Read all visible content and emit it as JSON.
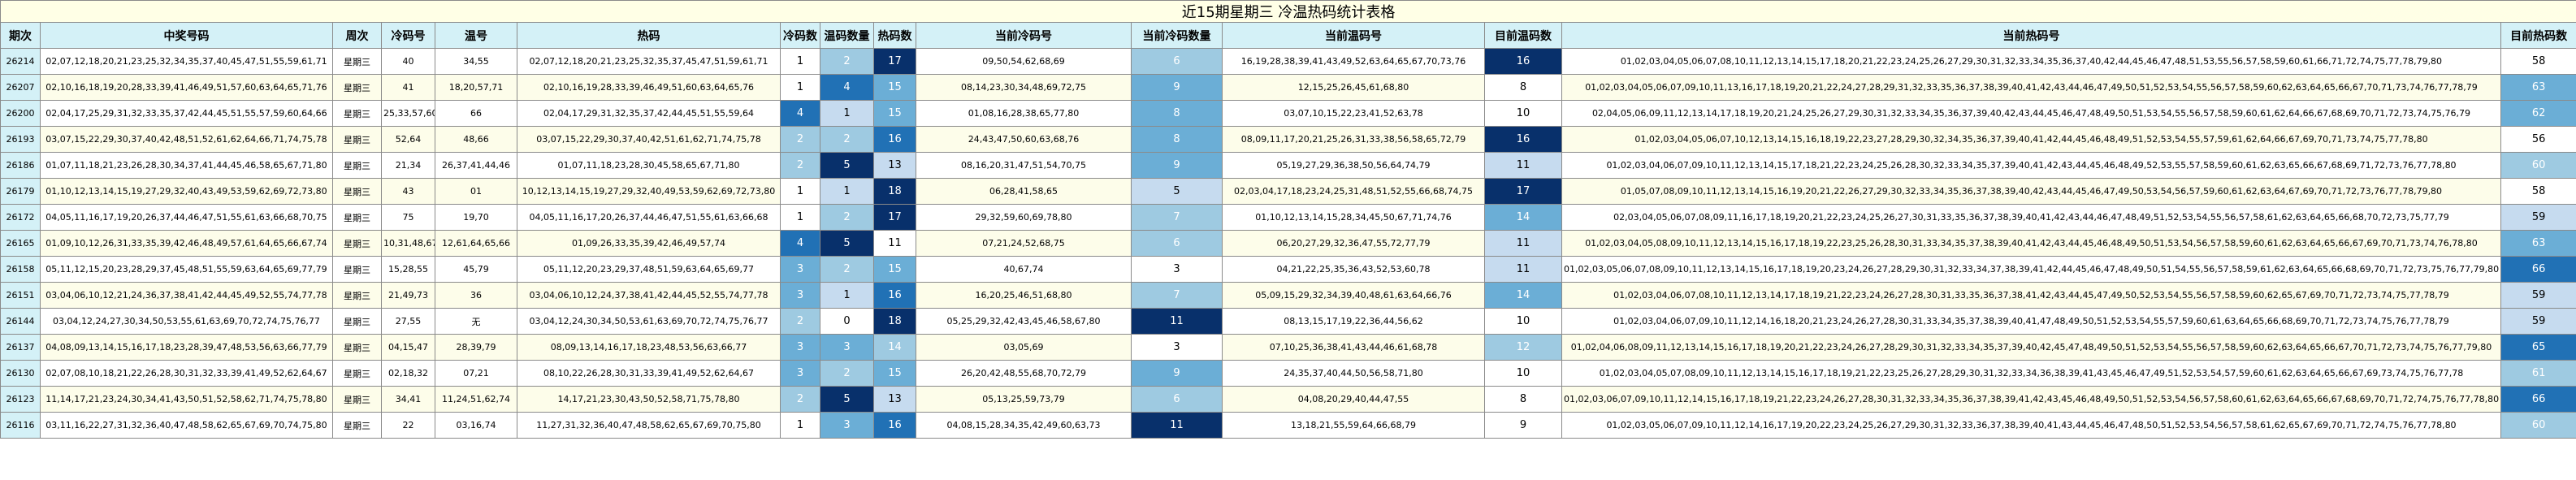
{
  "title": "近15期星期三 冷温热码统计表格",
  "headers": [
    "期次",
    "中奖号码",
    "周次",
    "冷码号",
    "温号",
    "热码",
    "冷码数",
    "温码数量",
    "热码数",
    "当前冷码号",
    "当前冷码数量",
    "当前温码号",
    "目前温码数",
    "当前热码号",
    "目前热码数"
  ],
  "rows": [
    {
      "period": "26214",
      "winning": "02,07,12,18,20,21,23,25,32,34,35,37,40,45,47,51,55,59,61,71",
      "weekday": "星期三",
      "cold": "40",
      "warm": "34,55",
      "hot": "02,07,12,18,20,21,23,25,32,35,37,45,47,51,59,61,71",
      "cold_n": "1",
      "warm_n": "2",
      "hot_n": "17",
      "cur_cold": "09,50,54,62,68,69",
      "cur_cold_n": "6",
      "cur_warm": "16,19,28,38,39,41,43,49,52,63,64,65,67,70,73,76",
      "cur_warm_n": "16",
      "cur_hot": "01,02,03,04,05,06,07,08,10,11,12,13,14,15,17,18,20,21,22,23,24,25,26,27,29,30,31,32,33,34,35,36,37,40,42,44,45,46,47,48,51,53,55,56,57,58,59,60,61,66,71,72,74,75,77,78,79,80",
      "cur_hot_n": "58"
    },
    {
      "period": "26207",
      "winning": "02,10,16,18,19,20,28,33,39,41,46,49,51,57,60,63,64,65,71,76",
      "weekday": "星期三",
      "cold": "41",
      "warm": "18,20,57,71",
      "hot": "02,10,16,19,28,33,39,46,49,51,60,63,64,65,76",
      "cold_n": "1",
      "warm_n": "4",
      "hot_n": "15",
      "cur_cold": "08,14,23,30,34,48,69,72,75",
      "cur_cold_n": "9",
      "cur_warm": "12,15,25,26,45,61,68,80",
      "cur_warm_n": "8",
      "cur_hot": "01,02,03,04,05,06,07,09,10,11,13,16,17,18,19,20,21,22,24,27,28,29,31,32,33,35,36,37,38,39,40,41,42,43,44,46,47,49,50,51,52,53,54,55,56,57,58,59,60,62,63,64,65,66,67,70,71,73,74,76,77,78,79",
      "cur_hot_n": "63"
    },
    {
      "period": "26200",
      "winning": "02,04,17,25,29,31,32,33,35,37,42,44,45,51,55,57,59,60,64,66",
      "weekday": "星期三",
      "cold": "25,33,57,60",
      "warm": "66",
      "hot": "02,04,17,29,31,32,35,37,42,44,45,51,55,59,64",
      "cold_n": "4",
      "warm_n": "1",
      "hot_n": "15",
      "cur_cold": "01,08,16,28,38,65,77,80",
      "cur_cold_n": "8",
      "cur_warm": "03,07,10,15,22,23,41,52,63,78",
      "cur_warm_n": "10",
      "cur_hot": "02,04,05,06,09,11,12,13,14,17,18,19,20,21,24,25,26,27,29,30,31,32,33,34,35,36,37,39,40,42,43,44,45,46,47,48,49,50,51,53,54,55,56,57,58,59,60,61,62,64,66,67,68,69,70,71,72,73,74,75,76,79",
      "cur_hot_n": "62"
    },
    {
      "period": "26193",
      "winning": "03,07,15,22,29,30,37,40,42,48,51,52,61,62,64,66,71,74,75,78",
      "weekday": "星期三",
      "cold": "52,64",
      "warm": "48,66",
      "hot": "03,07,15,22,29,30,37,40,42,51,61,62,71,74,75,78",
      "cold_n": "2",
      "warm_n": "2",
      "hot_n": "16",
      "cur_cold": "24,43,47,50,60,63,68,76",
      "cur_cold_n": "8",
      "cur_warm": "08,09,11,17,20,21,25,26,31,33,38,56,58,65,72,79",
      "cur_warm_n": "16",
      "cur_hot": "01,02,03,04,05,06,07,10,12,13,14,15,16,18,19,22,23,27,28,29,30,32,34,35,36,37,39,40,41,42,44,45,46,48,49,51,52,53,54,55,57,59,61,62,64,66,67,69,70,71,73,74,75,77,78,80",
      "cur_hot_n": "56"
    },
    {
      "period": "26186",
      "winning": "01,07,11,18,21,23,26,28,30,34,37,41,44,45,46,58,65,67,71,80",
      "weekday": "星期三",
      "cold": "21,34",
      "warm": "26,37,41,44,46",
      "hot": "01,07,11,18,23,28,30,45,58,65,67,71,80",
      "cold_n": "2",
      "warm_n": "5",
      "hot_n": "13",
      "cur_cold": "08,16,20,31,47,51,54,70,75",
      "cur_cold_n": "9",
      "cur_warm": "05,19,27,29,36,38,50,56,64,74,79",
      "cur_warm_n": "11",
      "cur_hot": "01,02,03,04,06,07,09,10,11,12,13,14,15,17,18,21,22,23,24,25,26,28,30,32,33,34,35,37,39,40,41,42,43,44,45,46,48,49,52,53,55,57,58,59,60,61,62,63,65,66,67,68,69,71,72,73,76,77,78,80",
      "cur_hot_n": "60"
    },
    {
      "period": "26179",
      "winning": "01,10,12,13,14,15,19,27,29,32,40,43,49,53,59,62,69,72,73,80",
      "weekday": "星期三",
      "cold": "43",
      "warm": "01",
      "hot": "10,12,13,14,15,19,27,29,32,40,49,53,59,62,69,72,73,80",
      "cold_n": "1",
      "warm_n": "1",
      "hot_n": "18",
      "cur_cold": "06,28,41,58,65",
      "cur_cold_n": "5",
      "cur_warm": "02,03,04,17,18,23,24,25,31,48,51,52,55,66,68,74,75",
      "cur_warm_n": "17",
      "cur_hot": "01,05,07,08,09,10,11,12,13,14,15,16,19,20,21,22,26,27,29,30,32,33,34,35,36,37,38,39,40,42,43,44,45,46,47,49,50,53,54,56,57,59,60,61,62,63,64,67,69,70,71,72,73,76,77,78,79,80",
      "cur_hot_n": "58"
    },
    {
      "period": "26172",
      "winning": "04,05,11,16,17,19,20,26,37,44,46,47,51,55,61,63,66,68,70,75",
      "weekday": "星期三",
      "cold": "75",
      "warm": "19,70",
      "hot": "04,05,11,16,17,20,26,37,44,46,47,51,55,61,63,66,68",
      "cold_n": "1",
      "warm_n": "2",
      "hot_n": "17",
      "cur_cold": "29,32,59,60,69,78,80",
      "cur_cold_n": "7",
      "cur_warm": "01,10,12,13,14,15,28,34,45,50,67,71,74,76",
      "cur_warm_n": "14",
      "cur_hot": "02,03,04,05,06,07,08,09,11,16,17,18,19,20,21,22,23,24,25,26,27,30,31,33,35,36,37,38,39,40,41,42,43,44,46,47,48,49,51,52,53,54,55,56,57,58,61,62,63,64,65,66,68,70,72,73,75,77,79",
      "cur_hot_n": "59"
    },
    {
      "period": "26165",
      "winning": "01,09,10,12,26,31,33,35,39,42,46,48,49,57,61,64,65,66,67,74",
      "weekday": "星期三",
      "cold": "10,31,48,67",
      "warm": "12,61,64,65,66",
      "hot": "01,09,26,33,35,39,42,46,49,57,74",
      "cold_n": "4",
      "warm_n": "5",
      "hot_n": "11",
      "cur_cold": "07,21,24,52,68,75",
      "cur_cold_n": "6",
      "cur_warm": "06,20,27,29,32,36,47,55,72,77,79",
      "cur_warm_n": "11",
      "cur_hot": "01,02,03,04,05,08,09,10,11,12,13,14,15,16,17,18,19,22,23,25,26,28,30,31,33,34,35,37,38,39,40,41,42,43,44,45,46,48,49,50,51,53,54,56,57,58,59,60,61,62,63,64,65,66,67,69,70,71,73,74,76,78,80",
      "cur_hot_n": "63"
    },
    {
      "period": "26158",
      "winning": "05,11,12,15,20,23,28,29,37,45,48,51,55,59,63,64,65,69,77,79",
      "weekday": "星期三",
      "cold": "15,28,55",
      "warm": "45,79",
      "hot": "05,11,12,20,23,29,37,48,51,59,63,64,65,69,77",
      "cold_n": "3",
      "warm_n": "2",
      "hot_n": "15",
      "cur_cold": "40,67,74",
      "cur_cold_n": "3",
      "cur_warm": "04,21,22,25,35,36,43,52,53,60,78",
      "cur_warm_n": "11",
      "cur_hot": "01,02,03,05,06,07,08,09,10,11,12,13,14,15,16,17,18,19,20,23,24,26,27,28,29,30,31,32,33,34,37,38,39,41,42,44,45,46,47,48,49,50,51,54,55,56,57,58,59,61,62,63,64,65,66,68,69,70,71,72,73,75,76,77,79,80",
      "cur_hot_n": "66"
    },
    {
      "period": "26151",
      "winning": "03,04,06,10,12,21,24,36,37,38,41,42,44,45,49,52,55,74,77,78",
      "weekday": "星期三",
      "cold": "21,49,73",
      "warm": "36",
      "hot": "03,04,06,10,12,24,37,38,41,42,44,45,52,55,74,77,78",
      "cold_n": "3",
      "warm_n": "1",
      "hot_n": "16",
      "cur_cold": "16,20,25,46,51,68,80",
      "cur_cold_n": "7",
      "cur_warm": "05,09,15,29,32,34,39,40,48,61,63,64,66,76",
      "cur_warm_n": "14",
      "cur_hot": "01,02,03,04,06,07,08,10,11,12,13,14,17,18,19,21,22,23,24,26,27,28,30,31,33,35,36,37,38,41,42,43,44,45,47,49,50,52,53,54,55,56,57,58,59,60,62,65,67,69,70,71,72,73,74,75,77,78,79",
      "cur_hot_n": "59"
    },
    {
      "period": "26144",
      "winning": "03,04,12,24,27,30,34,50,53,55,61,63,69,70,72,74,75,76,77",
      "weekday": "星期三",
      "cold": "27,55",
      "warm": "无",
      "hot": "03,04,12,24,30,34,50,53,61,63,69,70,72,74,75,76,77",
      "cold_n": "2",
      "warm_n": "0",
      "hot_n": "18",
      "cur_cold": "05,25,29,32,42,43,45,46,58,67,80",
      "cur_cold_n": "11",
      "cur_warm": "08,13,15,17,19,22,36,44,56,62",
      "cur_warm_n": "10",
      "cur_hot": "01,02,03,04,06,07,09,10,11,12,14,16,18,20,21,23,24,26,27,28,30,31,33,34,35,37,38,39,40,41,47,48,49,50,51,52,53,54,55,57,59,60,61,63,64,65,66,68,69,70,71,72,73,74,75,76,77,78,79",
      "cur_hot_n": "59"
    },
    {
      "period": "26137",
      "winning": "04,08,09,13,14,15,16,17,18,23,28,39,47,48,53,56,63,66,77,79",
      "weekday": "星期三",
      "cold": "04,15,47",
      "warm": "28,39,79",
      "hot": "08,09,13,14,16,17,18,23,48,53,56,63,66,77",
      "cold_n": "3",
      "warm_n": "3",
      "hot_n": "14",
      "cur_cold": "03,05,69",
      "cur_cold_n": "3",
      "cur_warm": "07,10,25,36,38,41,43,44,46,61,68,78",
      "cur_warm_n": "12",
      "cur_hot": "01,02,04,06,08,09,11,12,13,14,15,16,17,18,19,20,21,22,23,24,26,27,28,29,30,31,32,33,34,35,37,39,40,42,45,47,48,49,50,51,52,53,54,55,56,57,58,59,60,62,63,64,65,66,67,70,71,72,73,74,75,76,77,79,80",
      "cur_hot_n": "65"
    },
    {
      "period": "26130",
      "winning": "02,07,08,10,18,21,22,26,28,30,31,32,33,39,41,49,52,62,64,67",
      "weekday": "星期三",
      "cold": "02,18,32",
      "warm": "07,21",
      "hot": "08,10,22,26,28,30,31,33,39,41,49,52,62,64,67",
      "cold_n": "3",
      "warm_n": "2",
      "hot_n": "15",
      "cur_cold": "26,20,42,48,55,68,70,72,79",
      "cur_cold_n": "9",
      "cur_warm": "24,35,37,40,44,50,56,58,71,80",
      "cur_warm_n": "10",
      "cur_hot": "01,02,03,04,05,07,08,09,10,11,12,13,14,15,16,17,18,19,21,22,23,25,26,27,28,29,30,31,32,33,34,36,38,39,41,43,45,46,47,49,51,52,53,54,57,59,60,61,62,63,64,65,66,67,69,73,74,75,76,77,78",
      "cur_hot_n": "61"
    },
    {
      "period": "26123",
      "winning": "11,14,17,21,23,24,30,34,41,43,50,51,52,58,62,71,74,75,78,80",
      "weekday": "星期三",
      "cold": "34,41",
      "warm": "11,24,51,62,74",
      "hot": "14,17,21,23,30,43,50,52,58,71,75,78,80",
      "cold_n": "2",
      "warm_n": "5",
      "hot_n": "13",
      "cur_cold": "05,13,25,59,73,79",
      "cur_cold_n": "6",
      "cur_warm": "04,08,20,29,40,44,47,55",
      "cur_warm_n": "8",
      "cur_hot": "01,02,03,06,07,09,10,11,12,14,15,16,17,18,19,21,22,23,24,26,27,28,30,31,32,33,34,35,36,37,38,39,41,42,43,45,46,48,49,50,51,52,53,54,56,57,58,60,61,62,63,64,65,66,67,68,69,70,71,72,74,75,76,77,78,80",
      "cur_hot_n": "66"
    },
    {
      "period": "26116",
      "winning": "03,11,16,22,27,31,32,36,40,47,48,58,62,65,67,69,70,74,75,80",
      "weekday": "星期三",
      "cold": "22",
      "warm": "03,16,74",
      "hot": "11,27,31,32,36,40,47,48,58,62,65,67,69,70,75,80",
      "cold_n": "1",
      "warm_n": "3",
      "hot_n": "16",
      "cur_cold": "04,08,15,28,34,35,42,49,60,63,73",
      "cur_cold_n": "11",
      "cur_warm": "13,18,21,55,59,64,66,68,79",
      "cur_warm_n": "9",
      "cur_hot": "01,02,03,05,06,07,09,10,11,12,14,16,17,19,20,22,23,24,25,26,27,29,30,31,32,33,36,37,38,39,40,41,43,44,45,46,47,48,50,51,52,53,54,56,57,58,61,62,65,67,69,70,71,72,74,75,76,77,78,80",
      "cur_hot_n": "60"
    }
  ]
}
